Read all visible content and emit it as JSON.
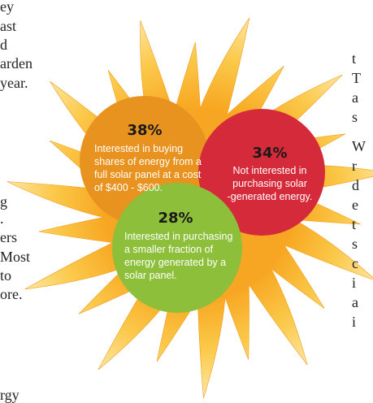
{
  "left_text": [
    "ey",
    "ast",
    "d",
    "arden",
    "year.",
    "g",
    ".",
    "ers",
    "Most",
    "to",
    "ore.",
    "rgy"
  ],
  "right_text": [
    "t",
    "T",
    "a",
    "s",
    "W",
    "r",
    "d",
    "e",
    "t",
    "s",
    "c",
    "i",
    "a",
    "i"
  ],
  "circles": [
    {
      "percent": "38%",
      "lines": [
        "Interested in buying",
        "shares of energy from a",
        "full solar panel at a cost",
        "of $400 - $600."
      ]
    },
    {
      "percent": "34%",
      "lines": [
        "Not interested in",
        "purchasing solar",
        "-generated energy."
      ]
    },
    {
      "percent": "28%",
      "lines": [
        "Interested in purchasing",
        "a smaller fraction of",
        "energy generated by a",
        "solar panel."
      ]
    }
  ]
}
